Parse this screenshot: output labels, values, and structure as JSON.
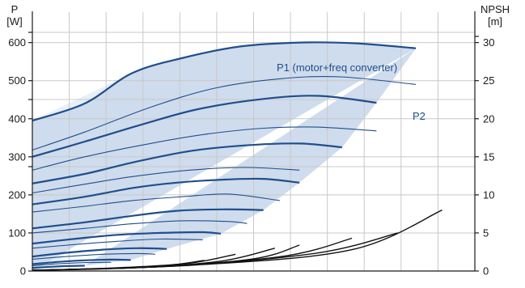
{
  "chart_data": {
    "type": "line",
    "left_axis": {
      "title_line1": "P",
      "title_line2": "[W]",
      "ticks": [
        0,
        100,
        200,
        300,
        400,
        500,
        600
      ],
      "ylim": [
        0,
        680
      ]
    },
    "right_axis": {
      "title_line1": "NPSH",
      "title_line2": "[m]",
      "ticks": [
        0,
        5,
        10,
        15,
        20,
        25,
        30
      ],
      "ylim": [
        0,
        34
      ]
    },
    "xlim": [
      0,
      27
    ],
    "grid": true,
    "colors": {
      "curve": "#1f4e8c",
      "fill": "#cfdced",
      "fill_light": "#e8eff8",
      "npsh": "#111111",
      "grid": "#c8c8c8"
    },
    "annotations": {
      "p1": "P1 (motor+freq converter)",
      "p2": "P2"
    },
    "series": [
      {
        "group": "P1",
        "speed": 1.0,
        "values": [
          [
            0,
            395
          ],
          [
            3.2,
            440
          ],
          [
            6.1,
            520
          ],
          [
            9.2,
            560
          ],
          [
            12.7,
            590
          ],
          [
            16.3,
            600
          ],
          [
            19.8,
            598
          ],
          [
            23.4,
            585
          ]
        ]
      },
      {
        "group": "P2",
        "speed": 1.0,
        "values": [
          [
            0,
            318
          ],
          [
            3.2,
            365
          ],
          [
            7.2,
            430
          ],
          [
            11.1,
            480
          ],
          [
            15.1,
            505
          ],
          [
            18.8,
            510
          ],
          [
            23.4,
            490
          ]
        ]
      },
      {
        "group": "P1",
        "speed": 0.95,
        "values": [
          [
            0,
            300
          ],
          [
            3.2,
            340
          ],
          [
            6.7,
            385
          ],
          [
            10.1,
            425
          ],
          [
            14.1,
            452
          ],
          [
            17.5,
            460
          ],
          [
            21.0,
            442
          ]
        ]
      },
      {
        "group": "P2",
        "speed": 0.95,
        "values": [
          [
            0,
            265
          ],
          [
            3.2,
            300
          ],
          [
            7.2,
            335
          ],
          [
            10.7,
            360
          ],
          [
            14.1,
            375
          ],
          [
            17.3,
            378
          ],
          [
            21.0,
            368
          ]
        ]
      },
      {
        "group": "P1",
        "speed": 0.85,
        "values": [
          [
            0,
            230
          ],
          [
            3.2,
            255
          ],
          [
            6.1,
            285
          ],
          [
            9.6,
            315
          ],
          [
            13.0,
            330
          ],
          [
            16.3,
            335
          ],
          [
            18.9,
            325
          ]
        ]
      },
      {
        "group": "P2",
        "speed": 0.85,
        "values": [
          [
            0,
            205
          ],
          [
            3.2,
            228
          ],
          [
            6.1,
            248
          ],
          [
            9.6,
            265
          ],
          [
            13.0,
            272
          ],
          [
            16.3,
            265
          ]
        ]
      },
      {
        "group": "P1",
        "speed": 0.75,
        "values": [
          [
            0,
            175
          ],
          [
            3.2,
            195
          ],
          [
            6.1,
            218
          ],
          [
            8.8,
            232
          ],
          [
            11.6,
            240
          ],
          [
            14.1,
            242
          ],
          [
            16.3,
            232
          ]
        ]
      },
      {
        "group": "P2",
        "speed": 0.75,
        "values": [
          [
            0,
            155
          ],
          [
            3.2,
            170
          ],
          [
            6.1,
            185
          ],
          [
            9.1,
            195
          ],
          [
            12.0,
            202
          ],
          [
            15.1,
            185
          ]
        ]
      },
      {
        "group": "P1",
        "speed": 0.65,
        "values": [
          [
            0,
            112
          ],
          [
            3.2,
            128
          ],
          [
            6.1,
            145
          ],
          [
            8.8,
            158
          ],
          [
            11.6,
            162
          ],
          [
            14.1,
            160
          ]
        ]
      },
      {
        "group": "P2",
        "speed": 0.65,
        "values": [
          [
            0,
            100
          ],
          [
            3.2,
            112
          ],
          [
            6.1,
            124
          ],
          [
            9.1,
            132
          ],
          [
            12.0,
            130
          ],
          [
            13.1,
            125
          ]
        ]
      },
      {
        "group": "P1",
        "speed": 0.55,
        "values": [
          [
            0,
            72
          ],
          [
            2.7,
            85
          ],
          [
            5.2,
            95
          ],
          [
            7.8,
            100
          ],
          [
            10.4,
            102
          ],
          [
            11.5,
            98
          ]
        ]
      },
      {
        "group": "P2",
        "speed": 0.55,
        "values": [
          [
            0,
            60
          ],
          [
            2.7,
            70
          ],
          [
            5.2,
            78
          ],
          [
            7.8,
            84
          ],
          [
            10.4,
            82
          ]
        ]
      },
      {
        "group": "P1",
        "speed": 0.45,
        "values": [
          [
            0,
            38
          ],
          [
            2.1,
            48
          ],
          [
            4.3,
            56
          ],
          [
            6.4,
            60
          ],
          [
            8.2,
            58
          ]
        ]
      },
      {
        "group": "P2",
        "speed": 0.45,
        "values": [
          [
            0,
            31
          ],
          [
            2.1,
            38
          ],
          [
            4.3,
            44
          ],
          [
            6.4,
            46
          ],
          [
            7.5,
            44
          ]
        ]
      },
      {
        "group": "P1",
        "speed": 0.35,
        "values": [
          [
            0,
            18
          ],
          [
            1.6,
            24
          ],
          [
            3.2,
            28
          ],
          [
            4.8,
            30
          ],
          [
            6.0,
            29
          ]
        ]
      },
      {
        "group": "P2",
        "speed": 0.35,
        "values": [
          [
            0,
            14
          ],
          [
            1.6,
            19
          ],
          [
            3.2,
            22
          ],
          [
            4.8,
            23
          ]
        ]
      },
      {
        "group": "P1",
        "speed": 0.25,
        "values": [
          [
            0,
            8
          ],
          [
            1.1,
            11
          ],
          [
            2.1,
            13
          ],
          [
            3.2,
            14
          ]
        ]
      }
    ],
    "npsh_curves": [
      {
        "values": [
          [
            0,
            0.1
          ],
          [
            4.0,
            0.3
          ],
          [
            8.0,
            0.7
          ],
          [
            10.5,
            1.4
          ]
        ]
      },
      {
        "values": [
          [
            0,
            0.1
          ],
          [
            5.0,
            0.4
          ],
          [
            9.5,
            1.0
          ],
          [
            12.4,
            2.2
          ]
        ]
      },
      {
        "values": [
          [
            0,
            0.1
          ],
          [
            6.0,
            0.4
          ],
          [
            11.5,
            1.3
          ],
          [
            14.8,
            3.0
          ]
        ]
      },
      {
        "values": [
          [
            0,
            0.1
          ],
          [
            7.0,
            0.5
          ],
          [
            13.5,
            1.6
          ],
          [
            16.3,
            3.4
          ]
        ]
      },
      {
        "values": [
          [
            0,
            0.1
          ],
          [
            8.0,
            0.6
          ],
          [
            15.5,
            2.0
          ],
          [
            19.5,
            4.3
          ]
        ]
      },
      {
        "values": [
          [
            0,
            0.1
          ],
          [
            9.0,
            0.7
          ],
          [
            17.5,
            2.4
          ],
          [
            22.3,
            5.0
          ]
        ]
      },
      {
        "values": [
          [
            0,
            0.1
          ],
          [
            10.0,
            0.8
          ],
          [
            19.5,
            2.8
          ],
          [
            25.0,
            8.0
          ]
        ]
      }
    ]
  }
}
